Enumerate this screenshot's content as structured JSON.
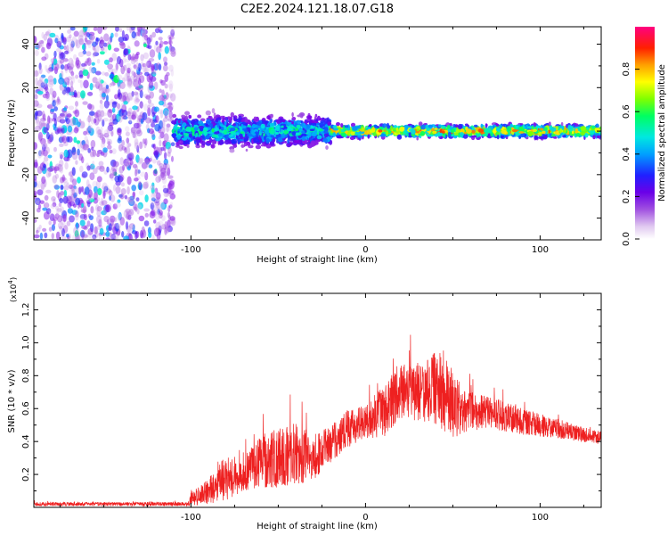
{
  "title": "C2E2.2024.121.18.07.G18",
  "chart_data": [
    {
      "type": "heatmap",
      "xlabel": "Height of straight line (km)",
      "ylabel": "Frequency (Hz)",
      "xlim": [
        -190,
        135
      ],
      "ylim": [
        -50,
        48
      ],
      "x_ticks": [
        -100,
        0,
        100
      ],
      "y_ticks": [
        -40,
        -20,
        0,
        20,
        40
      ],
      "colorbar": {
        "label": "Normalized spectral amplitude",
        "range": [
          0,
          1
        ],
        "ticks": [
          "0.0",
          "0.2",
          "0.4",
          "0.6",
          "0.8"
        ],
        "colors": [
          "#e0c8f0",
          "#a050e0",
          "#7a00e8",
          "#2020ff",
          "#00a0ff",
          "#00e8e0",
          "#00ff60",
          "#80ff00",
          "#ffff00",
          "#ffa000",
          "#ff2000",
          "#ff0080"
        ]
      },
      "segments": [
        {
          "name": "noise",
          "x_range": [
            -190,
            -110
          ],
          "f_spread": 48,
          "amplitude": 0.22
        },
        {
          "name": "signal-onset",
          "x_range": [
            -110,
            -20
          ],
          "f_center": 0,
          "f_spread": 6,
          "amplitude": 0.45
        },
        {
          "name": "signal-strong",
          "x_range": [
            -20,
            135
          ],
          "f_center": 0,
          "f_spread": 2.5,
          "amplitude": 0.75
        }
      ]
    },
    {
      "type": "line",
      "xlabel": "Height of straight line (km)",
      "ylabel": "SNR (10 * v/v)",
      "y_multiplier": "(x10",
      "y_multiplier_exp": "4",
      "y_multiplier_close": ")",
      "xlim": [
        -190,
        135
      ],
      "ylim": [
        0,
        1.3
      ],
      "x_ticks": [
        -100,
        0,
        100
      ],
      "y_ticks": [
        0.2,
        0.4,
        0.6,
        0.8,
        1.0,
        1.2
      ],
      "y_tick_labels": [
        "0.2",
        "0.4",
        "0.6",
        "0.8",
        "1.0",
        "1.2"
      ],
      "color": "#ee2020",
      "envelope": {
        "x": [
          -190,
          -102,
          -100,
          -90,
          -80,
          -70,
          -60,
          -50,
          -40,
          -30,
          -20,
          -10,
          0,
          10,
          20,
          30,
          40,
          45,
          50,
          60,
          70,
          80,
          90,
          100,
          110,
          120,
          135
        ],
        "mid": [
          0.02,
          0.02,
          0.05,
          0.1,
          0.18,
          0.2,
          0.28,
          0.3,
          0.32,
          0.3,
          0.38,
          0.48,
          0.52,
          0.58,
          0.7,
          0.7,
          0.72,
          0.7,
          0.62,
          0.58,
          0.58,
          0.55,
          0.52,
          0.5,
          0.48,
          0.45,
          0.42
        ],
        "amp": [
          0.012,
          0.012,
          0.04,
          0.08,
          0.14,
          0.1,
          0.16,
          0.18,
          0.2,
          0.14,
          0.12,
          0.12,
          0.1,
          0.16,
          0.16,
          0.18,
          0.22,
          0.28,
          0.2,
          0.12,
          0.1,
          0.09,
          0.08,
          0.07,
          0.06,
          0.05,
          0.04
        ]
      }
    }
  ]
}
